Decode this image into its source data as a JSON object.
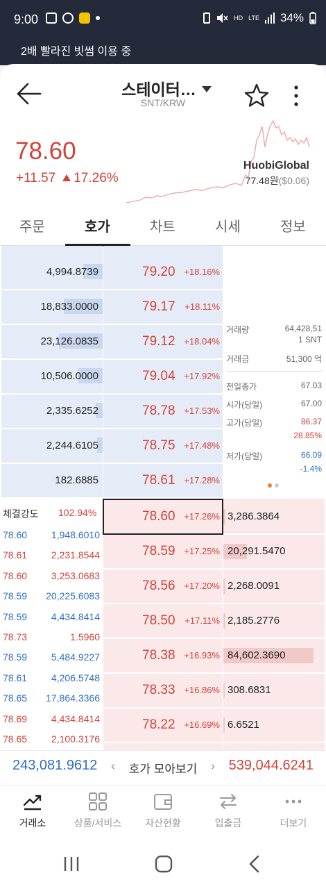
{
  "status_bar": {
    "time": "9:00",
    "battery": "34%",
    "net1": "HD",
    "net2": "LTE"
  },
  "banner": {
    "text": "2배 빨라진 빗썸 이용 중"
  },
  "header": {
    "title": "스테이터…",
    "pair": "SNT/KRW"
  },
  "ticker": {
    "price": "78.60",
    "change_abs": "+11.57",
    "change_pct": "17.26%",
    "exchange": "HuobiGlobal",
    "exchange_price": "77.48원",
    "exchange_usd": "($0.06)"
  },
  "tabs": [
    {
      "label": "주문"
    },
    {
      "label": "호가"
    },
    {
      "label": "차트"
    },
    {
      "label": "시세"
    },
    {
      "label": "정보"
    }
  ],
  "asks": [
    {
      "qty": "4,994.8739",
      "price": "79.20",
      "pct": "+18.16%",
      "bar": 0.2
    },
    {
      "qty": "18,833.0000",
      "price": "79.17",
      "pct": "+18.11%",
      "bar": 0.4
    },
    {
      "qty": "23,126.0835",
      "price": "79.12",
      "pct": "+18.04%",
      "bar": 0.45
    },
    {
      "qty": "10,506.0000",
      "price": "79.04",
      "pct": "+17.92%",
      "bar": 0.25
    },
    {
      "qty": "2,335.6252",
      "price": "78.78",
      "pct": "+17.53%",
      "bar": 0.07
    },
    {
      "qty": "2,244.6105",
      "price": "78.75",
      "pct": "+17.48%",
      "bar": 0.06
    },
    {
      "qty": "182.6885",
      "price": "78.61",
      "pct": "+17.28%",
      "bar": 0.0
    }
  ],
  "bids": [
    {
      "price": "78.60",
      "pct": "+17.26%",
      "qty": "3,286.3864",
      "bar": 0.02
    },
    {
      "price": "78.59",
      "pct": "+17.25%",
      "qty": "20,291.5470",
      "bar": 0.24
    },
    {
      "price": "78.56",
      "pct": "+17.20%",
      "qty": "2,268.0091",
      "bar": 0.02
    },
    {
      "price": "78.50",
      "pct": "+17.11%",
      "qty": "2,185.2776",
      "bar": 0.02
    },
    {
      "price": "78.38",
      "pct": "+16.93%",
      "qty": "84,602.3690",
      "bar": 0.93
    },
    {
      "price": "78.33",
      "pct": "+16.86%",
      "qty": "308.6831",
      "bar": 0.0
    },
    {
      "price": "78.22",
      "pct": "+16.69%",
      "qty": "6.6521",
      "bar": 0.0
    }
  ],
  "stats": {
    "volume_label": "거래량",
    "volume_value": "64,428,51",
    "volume_unit": "1 SNT",
    "amount_label": "거래금",
    "amount_value": "51,300 억",
    "prev_close_label": "전일종가",
    "prev_close": "67.03",
    "open_label": "시가(당일)",
    "open": "67.00",
    "high_label": "고가(당일)",
    "high": "86.37",
    "high_pct": "28.85%",
    "low_label": "저가(당일)",
    "low": "66.09",
    "low_pct": "-1.4%"
  },
  "trades": {
    "strength_label": "체결강도",
    "strength_value": "102.94%",
    "rows": [
      {
        "price": "78.60",
        "qty": "1,948.6010",
        "color": "blue"
      },
      {
        "price": "78.61",
        "qty": "2,231.8544",
        "color": "red"
      },
      {
        "price": "78.60",
        "qty": "3,253.0683",
        "color": "red"
      },
      {
        "price": "78.59",
        "qty": "20,225.6083",
        "color": "blue"
      },
      {
        "price": "78.59",
        "qty": "4,434.8414",
        "color": "blue"
      },
      {
        "price": "78.73",
        "qty": "1.5960",
        "color": "red"
      },
      {
        "price": "78.59",
        "qty": "5,484.9227",
        "color": "blue"
      },
      {
        "price": "78.61",
        "qty": "4,206.5748",
        "color": "blue"
      },
      {
        "price": "78.65",
        "qty": "17,864.3366",
        "color": "blue"
      },
      {
        "price": "78.69",
        "qty": "4,434.8414",
        "color": "red"
      },
      {
        "price": "78.65",
        "qty": "2,100.3176",
        "color": "red"
      }
    ]
  },
  "totals": {
    "ask_total": "243,081.9612",
    "bid_total": "539,044.6241",
    "collect_label": "호가 모아보기"
  },
  "bottom_nav": [
    {
      "label": "거래소",
      "icon": "trend-icon"
    },
    {
      "label": "상품/서비스",
      "icon": "grid-icon"
    },
    {
      "label": "자산현황",
      "icon": "wallet-icon"
    },
    {
      "label": "입출금",
      "icon": "transfer-icon"
    },
    {
      "label": "더보기",
      "icon": "more-dots-icon"
    }
  ],
  "colors": {
    "up": "#d0433a",
    "down": "#2f6fc4",
    "header_bg": "#252a3b"
  }
}
